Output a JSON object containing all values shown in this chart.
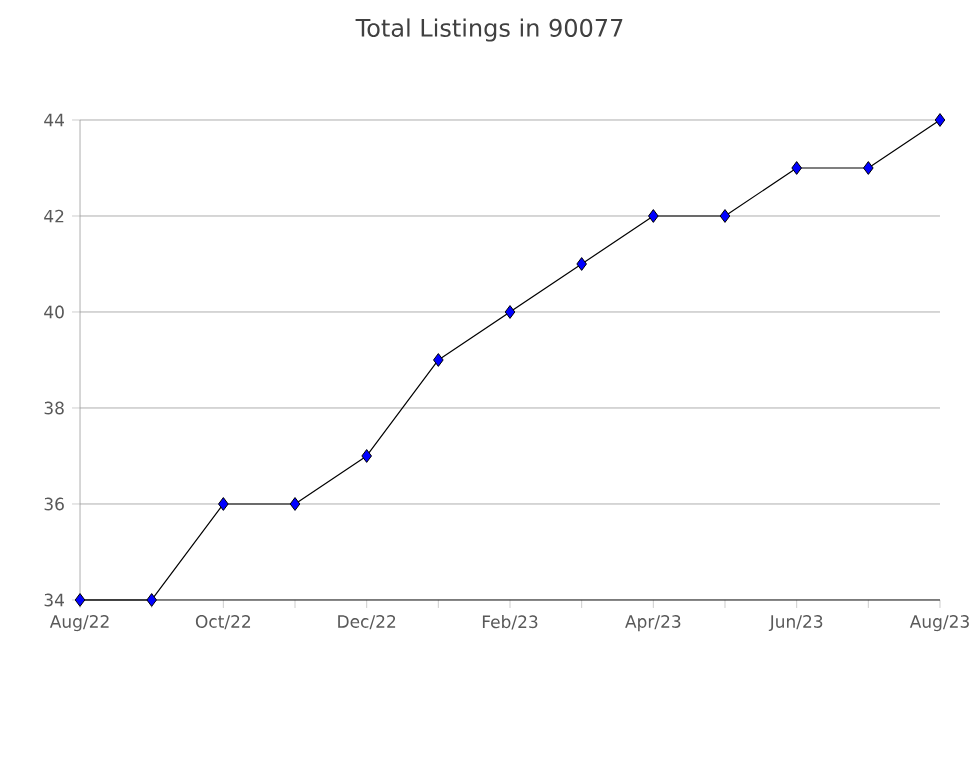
{
  "chart_data": {
    "type": "line",
    "title": "Total Listings in 90077",
    "categories": [
      "Aug/22",
      null,
      "Oct/22",
      null,
      "Dec/22",
      null,
      "Feb/23",
      null,
      "Apr/23",
      null,
      "Jun/23",
      null,
      "Aug/23"
    ],
    "series": [
      {
        "color": "#000000",
        "values": [
          34,
          34,
          36,
          36,
          37,
          39,
          40,
          41,
          42,
          42,
          43,
          43,
          44
        ]
      }
    ],
    "ylim": [
      34,
      44
    ],
    "yticks": [
      34,
      36,
      38,
      40,
      42,
      44
    ],
    "grid": "y",
    "marker": "diamond",
    "line_style": "solid"
  }
}
